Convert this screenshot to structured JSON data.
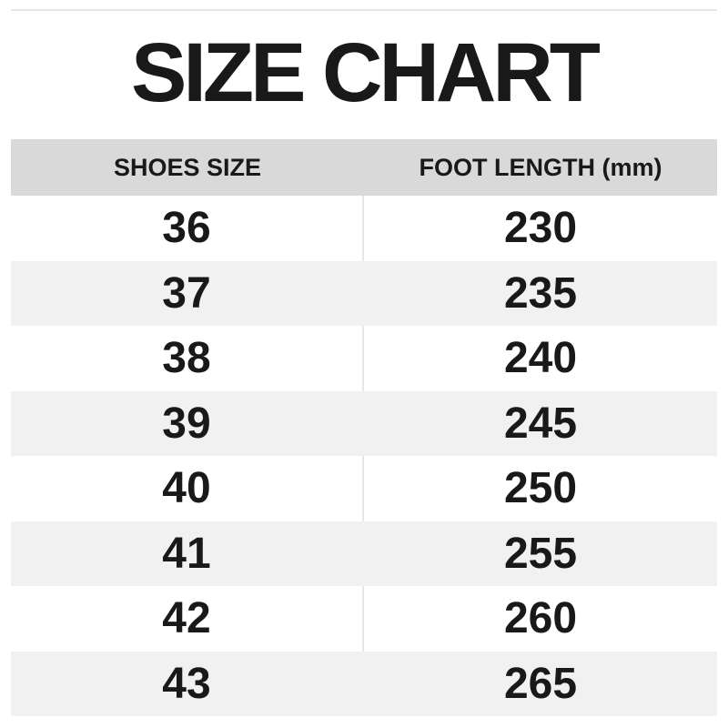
{
  "title": "SIZE CHART",
  "colors": {
    "header_bg": "#d9d9d9",
    "row_alt_bg": "#f1f1f1",
    "divider": "#e7e7e7",
    "text": "#191919",
    "page_bg": "#ffffff"
  },
  "table": {
    "headers": [
      "SHOES SIZE",
      "FOOT LENGTH (mm)"
    ],
    "rows": [
      {
        "size": "36",
        "length": "230"
      },
      {
        "size": "37",
        "length": "235"
      },
      {
        "size": "38",
        "length": "240"
      },
      {
        "size": "39",
        "length": "245"
      },
      {
        "size": "40",
        "length": "250"
      },
      {
        "size": "41",
        "length": "255"
      },
      {
        "size": "42",
        "length": "260"
      },
      {
        "size": "43",
        "length": "265"
      }
    ]
  },
  "chart_data": {
    "type": "table",
    "title": "SIZE CHART",
    "columns": [
      "SHOES SIZE",
      "FOOT LENGTH (mm)"
    ],
    "rows": [
      [
        36,
        230
      ],
      [
        37,
        235
      ],
      [
        38,
        240
      ],
      [
        39,
        245
      ],
      [
        40,
        250
      ],
      [
        41,
        255
      ],
      [
        42,
        260
      ],
      [
        43,
        265
      ]
    ],
    "layout": {
      "header_background": "#d9d9d9",
      "alternating_row_background": "#f1f1f1",
      "zebra_striping": true
    }
  }
}
